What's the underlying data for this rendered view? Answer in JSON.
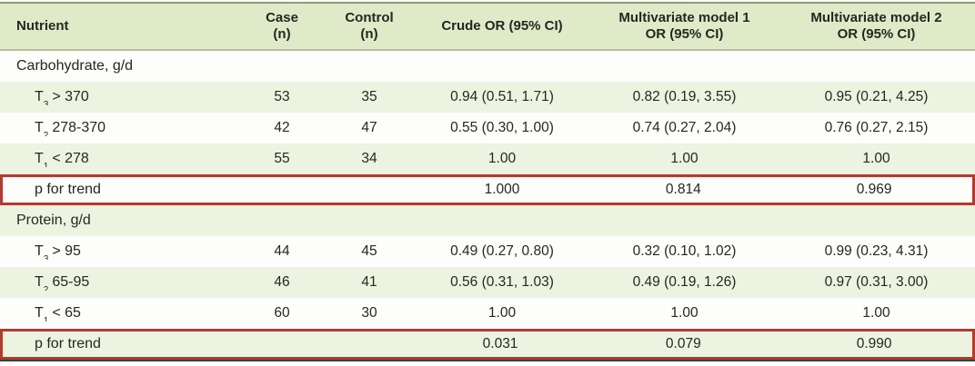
{
  "colors": {
    "header_bg": "#dfeac9",
    "row_green": "#edf3e1",
    "row_white": "#fdfdfb",
    "highlight_border_red": "#b23a2e",
    "table_top_rule": "#8d9c74",
    "header_bottom_rule": "#b5c19c",
    "table_bottom_rule": "#3d4034",
    "text": "#26271f"
  },
  "table": {
    "columns": [
      {
        "line1": "Nutrient",
        "line2": ""
      },
      {
        "line1": "Case",
        "line2": "(n)"
      },
      {
        "line1": "Control",
        "line2": "(n)"
      },
      {
        "line1": "Crude OR (95% CI)",
        "line2": ""
      },
      {
        "line1": "Multivariate model 1",
        "line2": "OR (95% CI)"
      },
      {
        "line1": "Multivariate model 2",
        "line2": "OR (95% CI)"
      }
    ],
    "rows": [
      {
        "type": "section",
        "label": "Carbohydrate, g/d"
      },
      {
        "type": "data",
        "t": "T",
        "sub": "3",
        "range": "> 370",
        "case_n": "53",
        "control_n": "35",
        "crude": "0.94 (0.51, 1.71)",
        "model1": "0.82 (0.19, 3.55)",
        "model2": "0.95 (0.21, 4.25)"
      },
      {
        "type": "data",
        "t": "T",
        "sub": "2",
        "range": "278-370",
        "case_n": "42",
        "control_n": "47",
        "crude": "0.55 (0.30, 1.00)",
        "model1": "0.74 (0.27, 2.04)",
        "model2": "0.76 (0.27, 2.15)"
      },
      {
        "type": "data",
        "t": "T",
        "sub": "1",
        "range": "< 278",
        "case_n": "55",
        "control_n": "34",
        "crude": "1.00",
        "model1": "1.00",
        "model2": "1.00"
      },
      {
        "type": "ptrend",
        "label": "p for trend",
        "crude": "1.000",
        "model1": "0.814",
        "model2": "0.969"
      },
      {
        "type": "section",
        "label": "Protein, g/d"
      },
      {
        "type": "data",
        "t": "T",
        "sub": "3",
        "range": "> 95",
        "case_n": "44",
        "control_n": "45",
        "crude": "0.49 (0.27, 0.80)",
        "model1": "0.32 (0.10, 1.02)",
        "model2": "0.99 (0.23, 4.31)"
      },
      {
        "type": "data",
        "t": "T",
        "sub": "2",
        "range": "65-95",
        "case_n": "46",
        "control_n": "41",
        "crude": "0.56 (0.31, 1.03)",
        "model1": "0.49 (0.19, 1.26)",
        "model2": "0.97 (0.31, 3.00)"
      },
      {
        "type": "data",
        "t": "T",
        "sub": "1",
        "range": "< 65",
        "case_n": "60",
        "control_n": "30",
        "crude": "1.00",
        "model1": "1.00",
        "model2": "1.00"
      },
      {
        "type": "ptrend",
        "label": "p for trend",
        "crude": "0.031",
        "crude_star": "*",
        "model1": "0.079",
        "model2": "0.990"
      }
    ]
  }
}
